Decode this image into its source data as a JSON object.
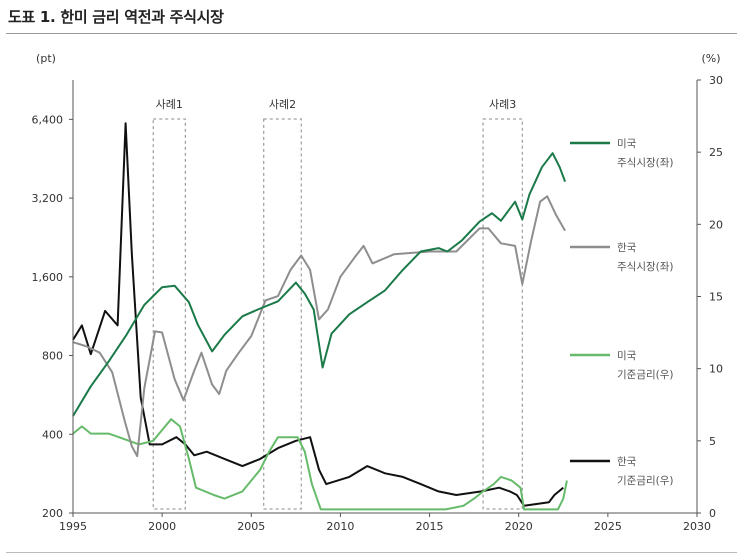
{
  "page": {
    "title": "도표 1. 한미 금리 역전과 주식시장"
  },
  "chart_data": {
    "type": "line",
    "title": "도표 1. 한미 금리 역전과 주식시장",
    "left_axis": {
      "unit_label": "(pt)",
      "scale": "log",
      "range": [
        200,
        9050
      ],
      "ticks": [
        200,
        400,
        800,
        1600,
        3200,
        6400
      ],
      "tick_labels": [
        "200",
        "400",
        "800",
        "1,600",
        "3,200",
        "6,400"
      ]
    },
    "right_axis": {
      "unit_label": "(%)",
      "range": [
        0,
        30
      ],
      "ticks": [
        0,
        5,
        10,
        15,
        20,
        25,
        30
      ]
    },
    "x_axis": {
      "range": [
        1995,
        2030
      ],
      "ticks": [
        1995,
        2000,
        2005,
        2010,
        2015,
        2020,
        2025,
        2030
      ]
    },
    "grid": false,
    "legend_position": "right",
    "annotations": [
      {
        "label": "사례1",
        "x_start": 1999.5,
        "x_end": 2001.3
      },
      {
        "label": "사례2",
        "x_start": 2005.7,
        "x_end": 2007.8
      },
      {
        "label": "사례3",
        "x_start": 2018.0,
        "x_end": 2020.2
      }
    ],
    "series": [
      {
        "name": "미국\n주식시장(좌)",
        "axis": "left",
        "color": "#1a7a48",
        "x": [
          1995,
          1996,
          1997,
          1998,
          1999,
          2000,
          2000.7,
          2001.5,
          2002,
          2002.8,
          2003.5,
          2004.5,
          2005.5,
          2006.5,
          2007.5,
          2008,
          2008.5,
          2009.0,
          2009.5,
          2010.5,
          2011.5,
          2012.5,
          2013.5,
          2014.5,
          2015.5,
          2016.0,
          2016.8,
          2017.8,
          2018.5,
          2019.0,
          2019.8,
          2020.2,
          2020.6,
          2021.3,
          2021.9,
          2022.3,
          2022.6
        ],
        "y": [
          470,
          610,
          760,
          960,
          1250,
          1460,
          1480,
          1280,
          1050,
          830,
          960,
          1130,
          1210,
          1290,
          1520,
          1380,
          1200,
          720,
          970,
          1150,
          1280,
          1420,
          1700,
          2000,
          2060,
          2000,
          2200,
          2600,
          2800,
          2620,
          3100,
          2650,
          3300,
          4200,
          4750,
          4200,
          3700
        ]
      },
      {
        "name": "한국\n주식시장(좌)",
        "axis": "left",
        "color": "#8e8e8e",
        "x": [
          1995,
          1995.7,
          1996.5,
          1997.2,
          1997.9,
          1998.3,
          1998.6,
          1999.0,
          1999.6,
          2000.0,
          2000.7,
          2001.2,
          2001.8,
          2002.2,
          2002.8,
          2003.2,
          2003.6,
          2004.3,
          2005.0,
          2005.8,
          2006.5,
          2007.2,
          2007.8,
          2008.3,
          2008.8,
          2009.3,
          2010.0,
          2010.8,
          2011.3,
          2011.8,
          2013.0,
          2015.0,
          2016.5,
          2017.8,
          2018.3,
          2019.0,
          2019.8,
          2020.2,
          2020.7,
          2021.2,
          2021.6,
          2022.1,
          2022.6
        ],
        "y": [
          900,
          870,
          820,
          690,
          450,
          360,
          330,
          600,
          990,
          980,
          650,
          540,
          700,
          820,
          620,
          570,
          700,
          820,
          950,
          1300,
          1350,
          1700,
          1930,
          1700,
          1100,
          1200,
          1600,
          1900,
          2100,
          1800,
          1950,
          2000,
          2000,
          2450,
          2450,
          2150,
          2100,
          1500,
          2200,
          3100,
          3250,
          2750,
          2400
        ]
      },
      {
        "name": "미국\n기준금리(우)",
        "axis": "right",
        "color": "#66bb6a",
        "x": [
          1995,
          1995.5,
          1996,
          1997,
          1998.7,
          1999.5,
          2000,
          2000.5,
          2001.0,
          2001.5,
          2001.9,
          2002.9,
          2003.5,
          2004.5,
          2005,
          2005.5,
          2006,
          2006.5,
          2007.6,
          2008.0,
          2008.4,
          2008.9,
          2015.9,
          2016.9,
          2017.5,
          2018.0,
          2018.6,
          2019.0,
          2019.6,
          2020.1,
          2020.3,
          2022.2,
          2022.5,
          2022.7
        ],
        "y": [
          5.5,
          6.0,
          5.5,
          5.5,
          4.75,
          5.0,
          5.75,
          6.5,
          6.0,
          3.75,
          1.75,
          1.25,
          1.0,
          1.5,
          2.25,
          3.0,
          4.25,
          5.25,
          5.25,
          4.25,
          2.0,
          0.25,
          0.25,
          0.5,
          1.0,
          1.5,
          2.0,
          2.5,
          2.25,
          1.75,
          0.25,
          0.25,
          1.0,
          2.25
        ]
      },
      {
        "name": "한국\n기준금리(우)",
        "axis": "right",
        "color": "#111111",
        "x": [
          1995,
          1995.5,
          1996,
          1996.8,
          1997.5,
          1997.95,
          1998.3,
          1998.8,
          1999.3,
          2000,
          2000.8,
          2001.3,
          2001.8,
          2002.5,
          2003.5,
          2004.5,
          2005.5,
          2006.5,
          2007.5,
          2008.3,
          2008.8,
          2009.2,
          2010.5,
          2011.5,
          2012.5,
          2013.5,
          2014.5,
          2015.5,
          2016.5,
          2017.9,
          2018.9,
          2019.5,
          2019.9,
          2020.3,
          2021.7,
          2022.0,
          2022.5
        ],
        "y": [
          12,
          13,
          11,
          14,
          13,
          27,
          18,
          8,
          4.75,
          4.75,
          5.25,
          4.75,
          4.0,
          4.25,
          3.75,
          3.25,
          3.75,
          4.5,
          5.0,
          5.25,
          3.0,
          2.0,
          2.5,
          3.25,
          2.75,
          2.5,
          2.0,
          1.5,
          1.25,
          1.5,
          1.75,
          1.5,
          1.25,
          0.5,
          0.75,
          1.25,
          1.75
        ]
      }
    ]
  }
}
